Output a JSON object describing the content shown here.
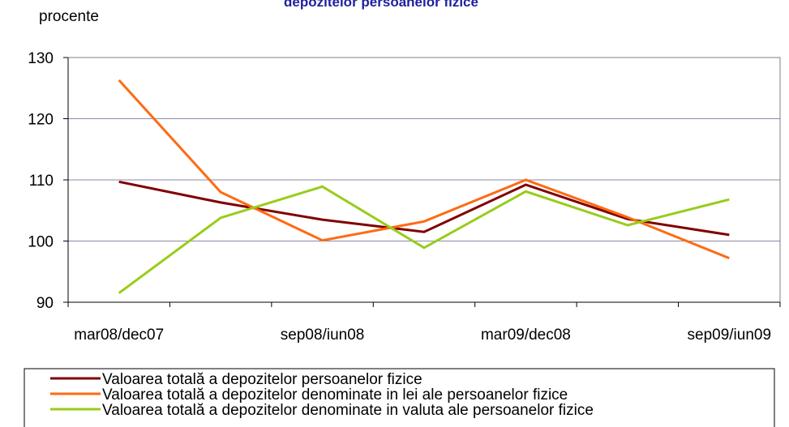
{
  "chart_data": {
    "type": "line",
    "title": "depozitelor persoanelor fizice",
    "y_label": "procente",
    "categories": [
      "mar08/dec07",
      null,
      "sep08/iun08",
      null,
      "mar09/dec08",
      null,
      "sep09/iun09"
    ],
    "series": [
      {
        "name": "Valoarea totală a depozitelor persoanelor fizice",
        "color": "#800000",
        "values": [
          109.7,
          106.3,
          103.5,
          101.5,
          109.2,
          103.6,
          101.0
        ]
      },
      {
        "name": "Valoarea totală a depozitelor denominate in lei ale persoanelor fizice",
        "color": "#ff6a13",
        "values": [
          126.3,
          108.0,
          100.1,
          103.2,
          110.0,
          103.9,
          97.2
        ]
      },
      {
        "name": "Valoarea totală a depozitelor denominate in valuta ale persoanelor fizice",
        "color": "#99cc1a",
        "values": [
          91.5,
          103.8,
          108.9,
          98.9,
          108.1,
          102.6,
          106.8
        ]
      }
    ],
    "ylim": [
      90,
      130
    ],
    "yticks": [
      90,
      100,
      110,
      120,
      130
    ],
    "grid": true
  }
}
